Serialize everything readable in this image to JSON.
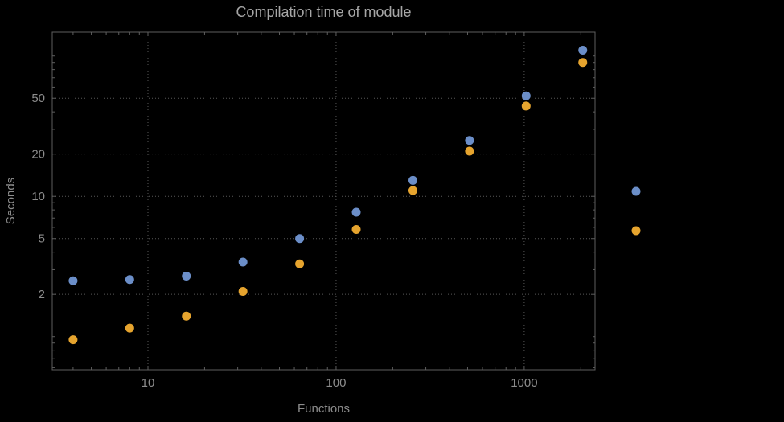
{
  "chart_data": {
    "type": "scatter",
    "title": "Compilation time of module",
    "xlabel": "Functions",
    "ylabel": "Seconds",
    "x_axis": {
      "label": "Functions",
      "scale": "log",
      "range": [
        3.1,
        2380
      ],
      "ticks": [
        10,
        100,
        1000
      ],
      "tick_labels": [
        "10",
        "100",
        "1000"
      ],
      "minor_ticks": [
        4,
        5,
        6,
        7,
        8,
        9,
        20,
        30,
        40,
        50,
        60,
        70,
        80,
        90,
        200,
        300,
        400,
        500,
        600,
        700,
        800,
        900,
        2000
      ]
    },
    "y_axis": {
      "label": "Seconds",
      "scale": "log",
      "range": [
        0.58,
        148
      ],
      "ticks": [
        2,
        5,
        10,
        20,
        50
      ],
      "tick_labels": [
        "2",
        "5",
        "10",
        "20",
        "50"
      ],
      "minor_ticks": [
        0.6,
        0.7,
        0.8,
        0.9,
        1,
        3,
        4,
        6,
        7,
        8,
        9,
        30,
        40,
        60,
        70,
        80,
        90,
        100
      ]
    },
    "x": [
      4,
      8,
      16,
      32,
      64,
      128,
      256,
      512,
      1024,
      2048
    ],
    "series": [
      {
        "name": "series-1",
        "color": "#6b8ec8",
        "values": [
          2.5,
          2.55,
          2.7,
          3.4,
          5.0,
          7.7,
          13,
          25,
          52,
          110
        ]
      },
      {
        "name": "series-2",
        "color": "#e6a42e",
        "values": [
          0.95,
          1.15,
          1.4,
          2.1,
          3.3,
          5.8,
          11,
          21,
          44,
          90
        ]
      }
    ],
    "grid": "dotted",
    "legend": {
      "position": "right",
      "labels_visible": false,
      "markers": [
        {
          "series": "series-1",
          "color": "#6b8ec8"
        },
        {
          "series": "series-2",
          "color": "#e6a42e"
        }
      ]
    },
    "style": {
      "background": "#000000",
      "frame_color": "#5e5e5e",
      "grid_color": "#585858",
      "tick_label_color": "#8c8c8c",
      "axis_label_color": "#8c8c8c",
      "title_color": "#a6a6a6"
    }
  }
}
